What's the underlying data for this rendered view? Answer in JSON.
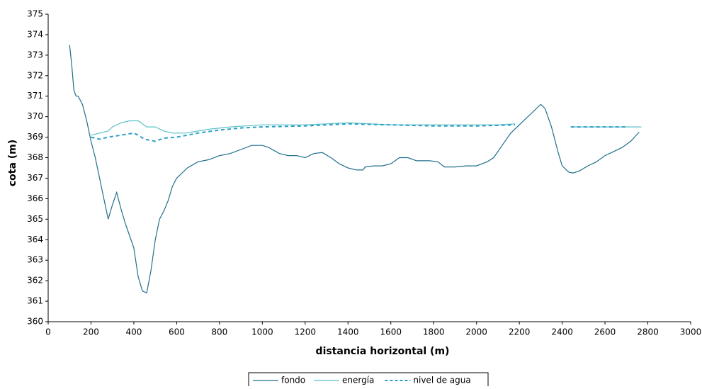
{
  "chart_data": {
    "type": "line",
    "x_label": "distancia horizontal (m)",
    "y_label": "cota (m)",
    "xlim": [
      0,
      3000
    ],
    "xticks": [
      0,
      200,
      400,
      600,
      800,
      1000,
      1200,
      1400,
      1600,
      1800,
      2000,
      2200,
      2400,
      2600,
      2800,
      3000
    ],
    "ylim": [
      360,
      375
    ],
    "yticks": [
      360,
      361,
      362,
      363,
      364,
      365,
      366,
      367,
      368,
      369,
      370,
      371,
      372,
      373,
      374,
      375
    ],
    "legend": "bottom",
    "series": [
      {
        "name": "fondo",
        "color": "#1f6f8b",
        "dash": "solid",
        "x": [
          100,
          110,
          120,
          130,
          140,
          160,
          180,
          200,
          220,
          240,
          260,
          280,
          300,
          320,
          340,
          360,
          380,
          400,
          420,
          440,
          460,
          480,
          500,
          520,
          540,
          560,
          580,
          600,
          650,
          700,
          750,
          800,
          850,
          900,
          950,
          1000,
          1030,
          1080,
          1120,
          1160,
          1200,
          1240,
          1280,
          1320,
          1360,
          1400,
          1440,
          1470,
          1480,
          1520,
          1560,
          1600,
          1640,
          1680,
          1720,
          1780,
          1820,
          1850,
          1900,
          1950,
          2000,
          2050,
          2080,
          2120,
          2160,
          2200,
          2240,
          2270,
          2300,
          2320,
          2350,
          2380,
          2400,
          2430,
          2450,
          2480,
          2520,
          2560,
          2600,
          2640,
          2680,
          2720,
          2760
        ],
        "values": [
          373.5,
          372.5,
          371.3,
          371,
          371,
          370.6,
          369.8,
          368.8,
          368,
          367,
          366,
          365,
          365.7,
          366.3,
          365.5,
          364.8,
          364.2,
          363.6,
          362.2,
          361.5,
          361.4,
          362.5,
          364,
          365,
          365.4,
          365.9,
          366.6,
          367,
          367.5,
          367.8,
          367.9,
          368.1,
          368.2,
          368.4,
          368.6,
          368.6,
          368.5,
          368.2,
          368.1,
          368.1,
          368,
          368.2,
          368.25,
          368,
          367.7,
          367.5,
          367.4,
          367.4,
          367.55,
          367.6,
          367.6,
          367.7,
          368,
          368,
          367.85,
          367.85,
          367.8,
          367.55,
          367.55,
          367.6,
          367.6,
          367.8,
          368,
          368.6,
          369.2,
          369.6,
          370,
          370.3,
          370.6,
          370.4,
          369.5,
          368.3,
          367.6,
          367.3,
          367.25,
          367.35,
          367.6,
          367.8,
          368.1,
          368.3,
          368.5,
          368.8,
          369.25
        ]
      },
      {
        "name": "energía",
        "color": "#5bc0c8",
        "dash": "solid",
        "x": [
          200,
          240,
          280,
          300,
          340,
          380,
          420,
          460,
          500,
          540,
          580,
          640,
          700,
          760,
          850,
          1000,
          1200,
          1400,
          1600,
          1800,
          2000,
          2100,
          2180,
          null,
          2440,
          2770
        ],
        "values": [
          369.1,
          369.2,
          369.3,
          369.5,
          369.7,
          369.8,
          369.8,
          369.5,
          369.5,
          369.3,
          369.2,
          369.2,
          369.3,
          369.4,
          369.5,
          369.6,
          369.6,
          369.7,
          369.6,
          369.6,
          369.6,
          369.6,
          369.65,
          null,
          369.5,
          369.5
        ]
      },
      {
        "name": "nivel de agua",
        "color": "#2a9fc4",
        "dash": "dashed",
        "x": [
          200,
          240,
          280,
          340,
          400,
          420,
          450,
          500,
          540,
          600,
          700,
          800,
          900,
          1000,
          1200,
          1400,
          1600,
          1800,
          2000,
          2180,
          null,
          2440,
          2700
        ],
        "values": [
          369,
          368.9,
          369,
          369.1,
          369.2,
          369.1,
          368.9,
          368.8,
          368.95,
          369,
          369.2,
          369.35,
          369.45,
          369.5,
          369.55,
          369.65,
          369.6,
          369.55,
          369.55,
          369.6,
          null,
          369.5,
          369.5
        ]
      }
    ]
  }
}
